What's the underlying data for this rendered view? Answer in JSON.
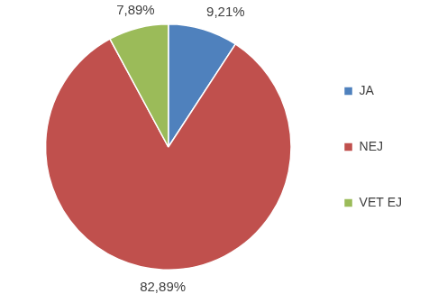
{
  "chart_data": {
    "type": "pie",
    "categories": [
      "JA",
      "NEJ",
      "VET EJ"
    ],
    "values": [
      9.21,
      82.89,
      7.89
    ],
    "value_labels": [
      "9,21%",
      "82,89%",
      "7,89%"
    ],
    "colors": [
      "#4f81bd",
      "#c0504d",
      "#9bbb59"
    ],
    "legend": "right",
    "data_labels": true
  }
}
